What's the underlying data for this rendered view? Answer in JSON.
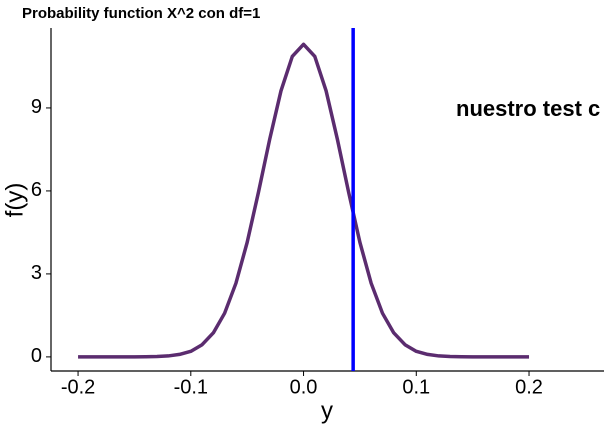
{
  "chart_data": {
    "type": "line",
    "title": "Probability function X^2 con df=1",
    "x_label": "y",
    "y_label": "f(y)",
    "x": [
      -0.2,
      -0.19,
      -0.18,
      -0.17,
      -0.16,
      -0.15,
      -0.14,
      -0.13,
      -0.12,
      -0.11,
      -0.1,
      -0.09,
      -0.08,
      -0.07,
      -0.06,
      -0.05,
      -0.04,
      -0.03,
      -0.02,
      -0.01,
      0,
      0.01,
      0.02,
      0.03,
      0.04,
      0.05,
      0.06,
      0.07,
      0.08,
      0.09,
      0.1,
      0.11,
      0.12,
      0.13,
      0.14,
      0.15,
      0.16,
      0.17,
      0.18,
      0.19,
      0.2
    ],
    "series": [
      {
        "color": "#5b2c6f",
        "values": [
          0,
          0,
          0,
          0,
          0,
          0.001,
          0.004,
          0.013,
          0.035,
          0.09,
          0.2,
          0.44,
          0.87,
          1.58,
          2.66,
          4.14,
          5.95,
          7.87,
          9.62,
          10.86,
          11.3,
          10.86,
          9.62,
          7.87,
          5.95,
          4.14,
          2.66,
          1.58,
          0.87,
          0.44,
          0.2,
          0.09,
          0.035,
          0.013,
          0.004,
          0.001,
          0,
          0,
          0,
          0,
          0
        ]
      }
    ],
    "vline": {
      "value": 0.044,
      "color": "#0000ff"
    },
    "annotation": "nuestro test c",
    "xlim": [
      -0.224,
      0.2665
    ],
    "ylim": [
      -0.51,
      11.89
    ],
    "xticks": [
      -0.2,
      -0.1,
      {
        "value": 0,
        "label": "0.0"
      },
      0.1,
      0.2
    ],
    "yticks": [
      0,
      3,
      6,
      9
    ]
  }
}
